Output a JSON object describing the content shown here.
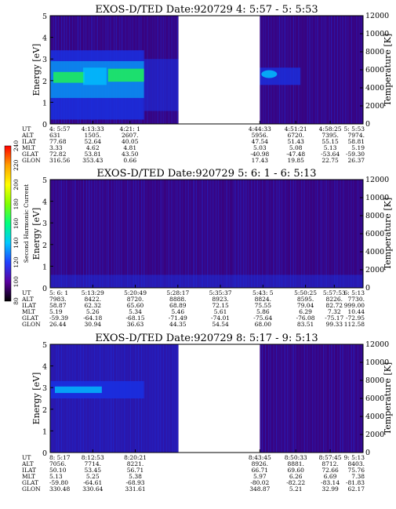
{
  "colors": {
    "background": "#3a007a",
    "data_blue": "#1a2fe0",
    "data_cyan": "#00c8ff",
    "data_green": "#22ff44",
    "gap": "#ffffff"
  },
  "colorbar": {
    "label": "Second Harmonic Current",
    "range": [
      80,
      240
    ],
    "ticks": [
      "80",
      "100",
      "120",
      "140",
      "160",
      "180",
      "200",
      "220",
      "240"
    ],
    "stops": [
      "#000000",
      "#5a00a0",
      "#2040ff",
      "#00c8ff",
      "#00ff80",
      "#80ff00",
      "#ffff00",
      "#ffa000",
      "#ff0000"
    ]
  },
  "chart_data": [
    {
      "type": "heatmap",
      "title": "EXOS-D/TED    Date:920729  4: 5:57 -  5: 5:53",
      "ylabel": "Energy [eV]",
      "y2label": "Temperature [K]",
      "ylim": [
        0,
        5
      ],
      "y2lim": [
        0,
        12000
      ],
      "yticks": [
        "0",
        "1",
        "2",
        "3",
        "4",
        "5"
      ],
      "y2ticks": [
        "0",
        "2000",
        "4000",
        "6000",
        "8000",
        "10000",
        "12000"
      ],
      "data_gap": [
        0.41,
        0.67
      ],
      "ticks": [
        {
          "pos": 0.0,
          "UT": "4: 5:57",
          "ALT": "631",
          "ILAT": "77.68",
          "MLT": "3.33",
          "GLAT": "72.82",
          "GLON": "316.56"
        },
        {
          "pos": 0.136,
          "UT": "4:13:33",
          "ALT": "1505.",
          "ILAT": "52.64",
          "MLT": "4.62",
          "GLAT": "53.81",
          "GLON": "353.43"
        },
        {
          "pos": 0.255,
          "UT": "4:21: 1",
          "ALT": "2607.",
          "ILAT": "40.05",
          "MLT": "4.81",
          "GLAT": "43.50",
          "GLON": "0.66"
        },
        {
          "pos": 0.67,
          "UT": "4:44:33",
          "ALT": "5956.",
          "ILAT": "47.54",
          "MLT": "5.03",
          "GLAT": "-40.98",
          "GLON": "17.43"
        },
        {
          "pos": 0.785,
          "UT": "4:51:21",
          "ALT": "6720.",
          "ILAT": "51.43",
          "MLT": "5.08",
          "GLAT": "-47.48",
          "GLON": "19.85"
        },
        {
          "pos": 0.895,
          "UT": "4:58:25",
          "ALT": "7395.",
          "ILAT": "55.15",
          "MLT": "5.13",
          "GLAT": "-53.64",
          "GLON": "22.75"
        },
        {
          "pos": 1.0,
          "UT": "5: 5:53",
          "ALT": "7974.",
          "ILAT": "58.81",
          "MLT": "5.19",
          "GLAT": "-59.30",
          "GLON": "26.37"
        }
      ]
    },
    {
      "type": "heatmap",
      "title": "EXOS-D/TED    Date:920729  5: 6: 1 -  6: 5:13",
      "ylabel": "Energy [eV]",
      "y2label": "Temperature [K]",
      "ylim": [
        0,
        5
      ],
      "y2lim": [
        0,
        12000
      ],
      "yticks": [
        "0",
        "1",
        "2",
        "3",
        "4",
        "5"
      ],
      "y2ticks": [
        "0",
        "2000",
        "4000",
        "6000",
        "8000",
        "10000",
        "12000"
      ],
      "data_gap": null,
      "ticks": [
        {
          "pos": 0.0,
          "UT": "5: 6: 1",
          "ALT": "7983.",
          "ILAT": "58.87",
          "MLT": "5.19",
          "GLAT": "-59.39",
          "GLON": "26.44"
        },
        {
          "pos": 0.136,
          "UT": "5:13:29",
          "ALT": "8422.",
          "ILAT": "62.32",
          "MLT": "5.26",
          "GLAT": "-64.18",
          "GLON": "30.94"
        },
        {
          "pos": 0.272,
          "UT": "5:20:49",
          "ALT": "8720.",
          "ILAT": "65.60",
          "MLT": "5.34",
          "GLAT": "-68.15",
          "GLON": "36.63"
        },
        {
          "pos": 0.408,
          "UT": "5:28:17",
          "ALT": "8888.",
          "ILAT": "68.89",
          "MLT": "5.46",
          "GLAT": "-71.49",
          "GLON": "44.35"
        },
        {
          "pos": 0.544,
          "UT": "5:35:37",
          "ALT": "8923.",
          "ILAT": "72.15",
          "MLT": "5.61",
          "GLAT": "-74.01",
          "GLON": "54.54"
        },
        {
          "pos": 0.68,
          "UT": "5:43: 5",
          "ALT": "8824.",
          "ILAT": "75.55",
          "MLT": "5.86",
          "GLAT": "-75.64",
          "GLON": "68.00"
        },
        {
          "pos": 0.816,
          "UT": "5:50:25",
          "ALT": "8595.",
          "ILAT": "79.04",
          "MLT": "6.29",
          "GLAT": "-76.08",
          "GLON": "83.51"
        },
        {
          "pos": 0.908,
          "UT": "5:57:53",
          "ALT": "8226.",
          "ILAT": "82.72",
          "MLT": "7.32",
          "GLAT": "-75.17",
          "GLON": "99.33"
        },
        {
          "pos": 1.0,
          "UT": "6: 5:13",
          "ALT": "7730.",
          "ILAT": "999.00",
          "MLT": "10.44",
          "GLAT": "-72.95",
          "GLON": "112.58"
        }
      ]
    },
    {
      "type": "heatmap",
      "title": "EXOS-D/TED    Date:920729  8: 5:17 -  9: 5:13",
      "ylabel": "Energy [eV]",
      "y2label": "Temperature [K]",
      "ylim": [
        0,
        5
      ],
      "y2lim": [
        0,
        12000
      ],
      "yticks": [
        "0",
        "1",
        "2",
        "3",
        "4",
        "5"
      ],
      "y2ticks": [
        "0",
        "2000",
        "4000",
        "6000",
        "8000",
        "10000",
        "12000"
      ],
      "data_gap": [
        0.41,
        0.67
      ],
      "ticks": [
        {
          "pos": 0.0,
          "UT": "8: 5:17",
          "ALT": "7056.",
          "ILAT": "50.10",
          "MLT": "5.13",
          "GLAT": "-59.80",
          "GLON": "330.48"
        },
        {
          "pos": 0.136,
          "UT": "8:12:53",
          "ALT": "7714.",
          "ILAT": "53.45",
          "MLT": "5.25",
          "GLAT": "-64.61",
          "GLON": "330.64"
        },
        {
          "pos": 0.272,
          "UT": "8:20:21",
          "ALT": "8221.",
          "ILAT": "56.71",
          "MLT": "5.38",
          "GLAT": "-68.93",
          "GLON": "331.61"
        },
        {
          "pos": 0.67,
          "UT": "8:43:45",
          "ALT": "8926.",
          "ILAT": "66.71",
          "MLT": "5.97",
          "GLAT": "-80.02",
          "GLON": "348.87"
        },
        {
          "pos": 0.785,
          "UT": "8:50:33",
          "ALT": "8881.",
          "ILAT": "69.60",
          "MLT": "6.26",
          "GLAT": "-82.22",
          "GLON": "5.21"
        },
        {
          "pos": 0.895,
          "UT": "8:57:45",
          "ALT": "8712.",
          "ILAT": "72.66",
          "MLT": "6.69",
          "GLAT": "-83.14",
          "GLON": "32.99"
        },
        {
          "pos": 1.0,
          "UT": "9: 5:13",
          "ALT": "8403.",
          "ILAT": "75.76",
          "MLT": "7.38",
          "GLAT": "-81.83",
          "GLON": "62.17"
        }
      ]
    }
  ]
}
